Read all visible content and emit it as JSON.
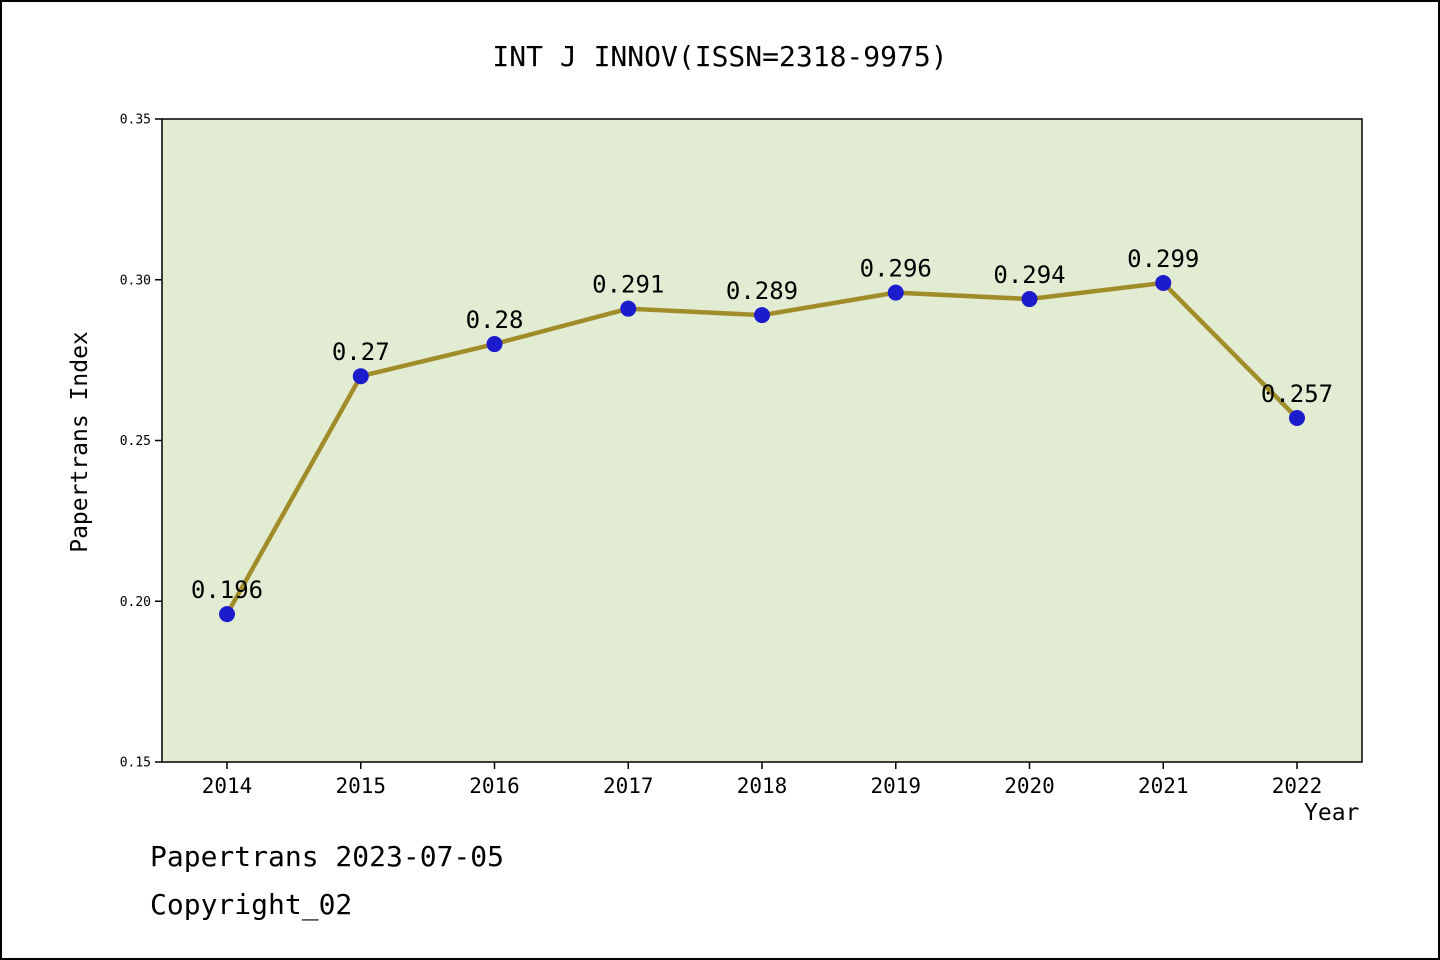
{
  "title": "INT J INNOV(ISSN=2318-9975)",
  "axes": {
    "x_label": "Year",
    "y_label": "Papertrans Index"
  },
  "footer": {
    "date_line": "Papertrans 2023-07-05",
    "copyright_line": "Copyright_02"
  },
  "chart_data": {
    "type": "line",
    "title": "INT J INNOV(ISSN=2318-9975)",
    "xlabel": "Year",
    "ylabel": "Papertrans Index",
    "categories": [
      "2014",
      "2015",
      "2016",
      "2017",
      "2018",
      "2019",
      "2020",
      "2021",
      "2022"
    ],
    "values": [
      0.196,
      0.27,
      0.28,
      0.291,
      0.289,
      0.296,
      0.294,
      0.299,
      0.257
    ],
    "point_labels": [
      "0.196",
      "0.27",
      "0.28",
      "0.291",
      "0.289",
      "0.296",
      "0.294",
      "0.299",
      "0.257"
    ],
    "ylim": [
      0.15,
      0.35
    ],
    "yticks": [
      0.15,
      0.2,
      0.25,
      0.3,
      0.35
    ],
    "ytick_labels": [
      "0.15",
      "0.20",
      "0.25",
      "0.30",
      "0.35"
    ],
    "grid": false,
    "legend_position": "none",
    "colors": {
      "line": "#a18c2a",
      "marker": "#1c1ccd",
      "plot_background": "#e2ecd3",
      "frame": "#000000",
      "text": "#000000"
    }
  }
}
